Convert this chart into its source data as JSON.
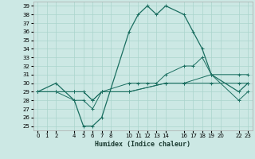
{
  "xlabel": "Humidex (Indice chaleur)",
  "bg_color": "#cce8e4",
  "grid_color": "#aad4cc",
  "line_color": "#1a6e60",
  "xlim": [
    -0.5,
    23.5
  ],
  "ylim": [
    24.5,
    39.5
  ],
  "xticks": [
    0,
    1,
    2,
    4,
    5,
    6,
    7,
    8,
    10,
    11,
    12,
    13,
    14,
    16,
    17,
    18,
    19,
    20,
    22,
    23
  ],
  "yticks": [
    25,
    26,
    27,
    28,
    29,
    30,
    31,
    32,
    33,
    34,
    35,
    36,
    37,
    38,
    39
  ],
  "series": [
    {
      "x": [
        0,
        2,
        4,
        5,
        6,
        7,
        10,
        11,
        12,
        13,
        14,
        16,
        17,
        18,
        19,
        22,
        23
      ],
      "y": [
        29,
        30,
        28,
        25,
        25,
        26,
        36,
        38,
        39,
        38,
        39,
        38,
        36,
        34,
        31,
        29,
        30
      ]
    },
    {
      "x": [
        0,
        2,
        4,
        5,
        6,
        7,
        10,
        11,
        12,
        13,
        14,
        16,
        17,
        18,
        19,
        22,
        23
      ],
      "y": [
        29,
        29,
        28,
        28,
        27,
        29,
        30,
        30,
        30,
        30,
        31,
        32,
        32,
        33,
        31,
        28,
        29
      ]
    },
    {
      "x": [
        0,
        2,
        4,
        5,
        6,
        7,
        10,
        14,
        16,
        19,
        22,
        23
      ],
      "y": [
        29,
        29,
        29,
        29,
        28,
        29,
        29,
        30,
        30,
        31,
        31,
        31
      ]
    },
    {
      "x": [
        0,
        2,
        4,
        5,
        6,
        7,
        10,
        14,
        16,
        19,
        22,
        23
      ],
      "y": [
        29,
        29,
        29,
        29,
        28,
        29,
        29,
        30,
        30,
        30,
        30,
        30
      ]
    }
  ]
}
